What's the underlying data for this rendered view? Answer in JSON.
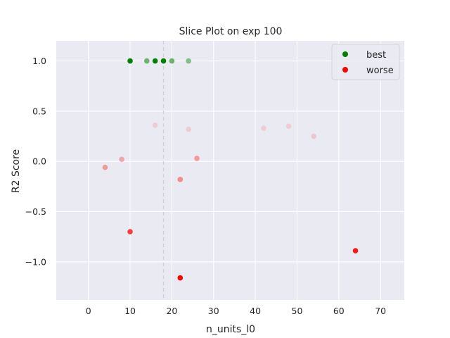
{
  "chart_data": {
    "type": "scatter",
    "title": "Slice Plot on exp 100",
    "xlabel": "n_units_l0",
    "ylabel": "R2 Score",
    "xlim": [
      -7.7,
      75.7
    ],
    "ylim": [
      -1.38,
      1.2
    ],
    "xticks": [
      0,
      10,
      20,
      30,
      40,
      50,
      60,
      70
    ],
    "yticks": [
      -1.0,
      -0.5,
      0.0,
      0.5,
      1.0
    ],
    "ytick_labels": [
      "−1.0",
      "−0.5",
      "0.0",
      "0.5",
      "1.0"
    ],
    "grid": true,
    "background": "#eaeaf2",
    "reference_line_x": 18,
    "legend": {
      "position": "top-right",
      "entries": [
        {
          "label": "best",
          "color": "#008000"
        },
        {
          "label": "worse",
          "color": "#ff0000"
        }
      ]
    },
    "series": [
      {
        "name": "best",
        "color": "#008000",
        "points": [
          {
            "x": 10,
            "y": 1.0,
            "alpha": 1.0
          },
          {
            "x": 14,
            "y": 1.0,
            "alpha": 0.55
          },
          {
            "x": 16,
            "y": 1.0,
            "alpha": 1.0
          },
          {
            "x": 18,
            "y": 1.0,
            "alpha": 1.0
          },
          {
            "x": 20,
            "y": 1.0,
            "alpha": 0.55
          },
          {
            "x": 24,
            "y": 1.0,
            "alpha": 0.45
          }
        ]
      },
      {
        "name": "worse",
        "color": "#ff0000",
        "points": [
          {
            "x": 16,
            "y": 0.36,
            "alpha": 0.12
          },
          {
            "x": 24,
            "y": 0.32,
            "alpha": 0.12
          },
          {
            "x": 42,
            "y": 0.33,
            "alpha": 0.12
          },
          {
            "x": 48,
            "y": 0.35,
            "alpha": 0.12
          },
          {
            "x": 54,
            "y": 0.25,
            "alpha": 0.15
          },
          {
            "x": 4,
            "y": -0.06,
            "alpha": 0.35
          },
          {
            "x": 8,
            "y": 0.02,
            "alpha": 0.3
          },
          {
            "x": 26,
            "y": 0.03,
            "alpha": 0.35
          },
          {
            "x": 22,
            "y": -0.18,
            "alpha": 0.4
          },
          {
            "x": 10,
            "y": -0.7,
            "alpha": 0.75
          },
          {
            "x": 64,
            "y": -0.89,
            "alpha": 0.9
          },
          {
            "x": 22,
            "y": -1.16,
            "alpha": 1.0
          }
        ]
      }
    ]
  }
}
